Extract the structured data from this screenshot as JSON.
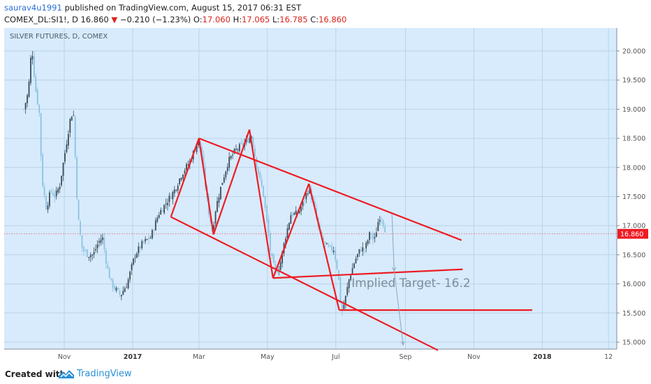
{
  "header": {
    "username": "saurav4u1991",
    "published_text": "published on TradingView.com, August 15, 2017 06:31 EST",
    "symbol": "COMEX_DL:SI1!, D",
    "last_price": "16.860",
    "change_arrow": "▼",
    "change": "−0.210 (−1.23%)",
    "open_label": "O:",
    "open": "17.060",
    "high_label": "H:",
    "high": "17.065",
    "low_label": "L:",
    "low": "16.785",
    "close_label": "C:",
    "close": "16.860"
  },
  "chart_data": {
    "type": "candlestick",
    "title": "SILVER FUTURES, D, COMEX",
    "ylim": [
      14.86,
      20.44
    ],
    "y_ticks": [
      "15.000",
      "15.500",
      "16.000",
      "16.500",
      "17.000",
      "17.500",
      "18.000",
      "18.500",
      "19.000",
      "19.500",
      "20.000"
    ],
    "x_ticks": [
      "Nov",
      "2017",
      "Mar",
      "May",
      "Jul",
      "Sep",
      "Nov",
      "2018",
      "12"
    ],
    "bold_x_ticks": [
      "2017",
      "2018"
    ],
    "current_price_label": "16.860",
    "current_price": 16.86,
    "price_path": [
      [
        "2016-09-26",
        19.0
      ],
      [
        "2016-09-30",
        19.3
      ],
      [
        "2016-10-03",
        20.1
      ],
      [
        "2016-10-06",
        19.4
      ],
      [
        "2016-10-10",
        18.9
      ],
      [
        "2016-10-12",
        17.8
      ],
      [
        "2016-10-16",
        17.3
      ],
      [
        "2016-10-20",
        17.6
      ],
      [
        "2016-10-24",
        17.5
      ],
      [
        "2016-10-28",
        17.7
      ],
      [
        "2016-11-02",
        18.3
      ],
      [
        "2016-11-06",
        18.8
      ],
      [
        "2016-11-09",
        19.0
      ],
      [
        "2016-11-12",
        17.6
      ],
      [
        "2016-11-14",
        17.0
      ],
      [
        "2016-11-17",
        16.6
      ],
      [
        "2016-11-22",
        16.5
      ],
      [
        "2016-11-27",
        16.5
      ],
      [
        "2016-12-01",
        16.7
      ],
      [
        "2016-12-05",
        16.8
      ],
      [
        "2016-12-09",
        16.3
      ],
      [
        "2016-12-13",
        16.0
      ],
      [
        "2016-12-17",
        15.9
      ],
      [
        "2016-12-21",
        15.8
      ],
      [
        "2016-12-27",
        16.0
      ],
      [
        "2017-01-03",
        16.5
      ],
      [
        "2017-01-10",
        16.7
      ],
      [
        "2017-01-17",
        16.8
      ],
      [
        "2017-01-24",
        17.2
      ],
      [
        "2017-01-31",
        17.4
      ],
      [
        "2017-02-07",
        17.6
      ],
      [
        "2017-02-14",
        17.9
      ],
      [
        "2017-02-21",
        18.1
      ],
      [
        "2017-02-28",
        18.45
      ],
      [
        "2017-03-03",
        18.3
      ],
      [
        "2017-03-06",
        17.8
      ],
      [
        "2017-03-09",
        17.3
      ],
      [
        "2017-03-13",
        16.9
      ],
      [
        "2017-03-16",
        17.3
      ],
      [
        "2017-03-21",
        17.7
      ],
      [
        "2017-03-27",
        18.1
      ],
      [
        "2017-04-03",
        18.3
      ],
      [
        "2017-04-10",
        18.4
      ],
      [
        "2017-04-17",
        18.55
      ],
      [
        "2017-04-20",
        18.2
      ],
      [
        "2017-04-24",
        17.8
      ],
      [
        "2017-04-27",
        17.6
      ],
      [
        "2017-05-01",
        17.0
      ],
      [
        "2017-05-04",
        16.5
      ],
      [
        "2017-05-08",
        16.2
      ],
      [
        "2017-05-12",
        16.3
      ],
      [
        "2017-05-17",
        16.8
      ],
      [
        "2017-05-22",
        17.2
      ],
      [
        "2017-05-28",
        17.2
      ],
      [
        "2017-06-02",
        17.4
      ],
      [
        "2017-06-07",
        17.65
      ],
      [
        "2017-06-12",
        17.3
      ],
      [
        "2017-06-16",
        16.9
      ],
      [
        "2017-06-20",
        16.7
      ],
      [
        "2017-06-25",
        16.6
      ],
      [
        "2017-06-29",
        16.6
      ],
      [
        "2017-07-03",
        16.2
      ],
      [
        "2017-07-06",
        15.5
      ],
      [
        "2017-07-09",
        15.7
      ],
      [
        "2017-07-13",
        16.1
      ],
      [
        "2017-07-18",
        16.4
      ],
      [
        "2017-07-23",
        16.6
      ],
      [
        "2017-07-27",
        16.6
      ],
      [
        "2017-08-01",
        16.9
      ],
      [
        "2017-08-04",
        16.7
      ],
      [
        "2017-08-08",
        17.1
      ],
      [
        "2017-08-10",
        17.2
      ],
      [
        "2017-08-15",
        16.86
      ]
    ],
    "trend_lines": [
      {
        "from": [
          "2017-02-04",
          17.15
        ],
        "to": [
          "2017-09-30",
          14.86
        ]
      },
      {
        "from": [
          "2017-03-01",
          18.5
        ],
        "to": [
          "2017-10-21",
          16.75
        ]
      },
      {
        "from": [
          "2017-05-06",
          16.1
        ],
        "to": [
          "2017-10-22",
          16.25
        ]
      },
      {
        "from": [
          "2017-07-04",
          15.55
        ],
        "to": [
          "2017-12-23",
          15.55
        ]
      }
    ],
    "pattern_segments": [
      [
        [
          "2017-02-04",
          17.15
        ],
        [
          "2017-03-01",
          18.5
        ]
      ],
      [
        [
          "2017-03-01",
          18.5
        ],
        [
          "2017-03-14",
          16.85
        ]
      ],
      [
        [
          "2017-03-14",
          16.85
        ],
        [
          "2017-04-15",
          18.65
        ]
      ],
      [
        [
          "2017-04-15",
          18.65
        ],
        [
          "2017-05-06",
          16.1
        ]
      ],
      [
        [
          "2017-05-06",
          16.1
        ],
        [
          "2017-06-07",
          17.72
        ]
      ],
      [
        [
          "2017-06-07",
          17.72
        ],
        [
          "2017-07-04",
          15.55
        ]
      ]
    ],
    "target_arrows": [
      {
        "from": [
          "2017-08-20",
          17.2
        ],
        "to": [
          "2017-08-22",
          16.22
        ]
      },
      {
        "from": [
          "2017-08-22",
          16.22
        ],
        "to": [
          "2017-08-30",
          14.95
        ]
      }
    ],
    "annotation": {
      "text": "Implied Target- 16.2",
      "at": [
        "2017-07-15",
        15.95
      ]
    }
  },
  "footer": {
    "created_with": "Created with",
    "brand": "TradingView"
  },
  "colors": {
    "background": "#d7ebfd",
    "pattern": "#ee1c24",
    "up": "#3a4a57",
    "down": "#8bc3df",
    "price_badge": "#ee1c24",
    "annotation": "#7b8d9c",
    "brand": "#2a90d8"
  }
}
